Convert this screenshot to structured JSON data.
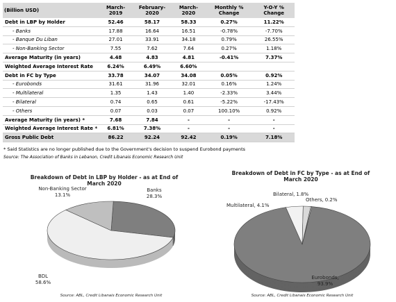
{
  "table": {
    "header": [
      "(Billion USD)",
      "March-2019",
      "February-2020",
      "March-2020",
      "Monthly % Change",
      "Y-O-Y % Change"
    ],
    "rows": [
      [
        "Debt in LBP by Holder",
        "52.46",
        "58.17",
        "58.33",
        "0.27%",
        "11.22%"
      ],
      [
        "- Banks",
        "17.88",
        "16.64",
        "16.51",
        "-0.78%",
        "-7.70%"
      ],
      [
        "- Banque Du Liban",
        "27.01",
        "33.91",
        "34.18",
        "0.79%",
        "26.55%"
      ],
      [
        "- Non-Banking Sector",
        "7.55",
        "7.62",
        "7.64",
        "0.27%",
        "1.18%"
      ],
      [
        "Average Maturity (in years)",
        "4.48",
        "4.83",
        "4.81",
        "-0.41%",
        "7.37%"
      ],
      [
        "Weighted Average Interest Rate",
        "6.24%",
        "6.49%",
        "6.60%",
        null,
        null
      ],
      [
        "Debt in FC by Type",
        "33.78",
        "34.07",
        "34.08",
        "0.05%",
        "0.92%"
      ],
      [
        "- Eurobonds",
        "31.61",
        "31.96",
        "32.01",
        "0.16%",
        "1.24%"
      ],
      [
        "- Multilateral",
        "1.35",
        "1.43",
        "1.40",
        "-2.33%",
        "3.44%"
      ],
      [
        "- Bilateral",
        "0.74",
        "0.65",
        "0.61",
        "-5.22%",
        "-17.43%"
      ],
      [
        "- Others",
        "0.07",
        "0.03",
        "0.07",
        "100.10%",
        "0.92%"
      ],
      [
        "Average Maturity (in years) *",
        "7.68",
        "7.84",
        "-",
        "-",
        "-"
      ],
      [
        "Weighted Average Interest Rate *",
        "6.81%",
        "7.38%",
        "-",
        "-",
        "-"
      ],
      [
        "Gross Public Debt",
        "86.22",
        "92.24",
        "92.42",
        "0.19%",
        "7.18%"
      ]
    ],
    "footnote": "* Said Statistics are no longer published due to the Government's decision to suspend Eurobond payments",
    "source": "Source: The Association of Banks in Lebanon, Credit Libanais Economic Research Unit"
  },
  "charts": [
    {
      "type": "pie",
      "title": "Breakdown of Debt in LBP by Holder - as at End of March 2020",
      "categories": [
        "Banks",
        "BDL",
        "Non-Banking Sector"
      ],
      "values": [
        28.3,
        58.6,
        13.1
      ],
      "value_labels": [
        "28.3%",
        "58.6%",
        "13.1%"
      ],
      "colors": [
        "#7f7f7f",
        "#efefef",
        "#bfbfbf"
      ],
      "source": "Source: ABL, Credit Libanais Economic Research Unit"
    },
    {
      "type": "pie",
      "title": "Breakdown of Debt in FC by Type - as at End of March 2020",
      "categories": [
        "Eurobonds,",
        "Multilateral,",
        "Bilateral,",
        "Others,"
      ],
      "values": [
        93.9,
        4.1,
        1.8,
        0.2
      ],
      "value_labels": [
        "93.9%",
        "4.1%",
        "1.8%",
        "0.2%"
      ],
      "colors": [
        "#7f7f7f",
        "#f2f2f2",
        "#d9d9d9",
        "#ffffff"
      ],
      "source": "Source: ABL, Credit Libanais Economic Research Unit"
    }
  ]
}
